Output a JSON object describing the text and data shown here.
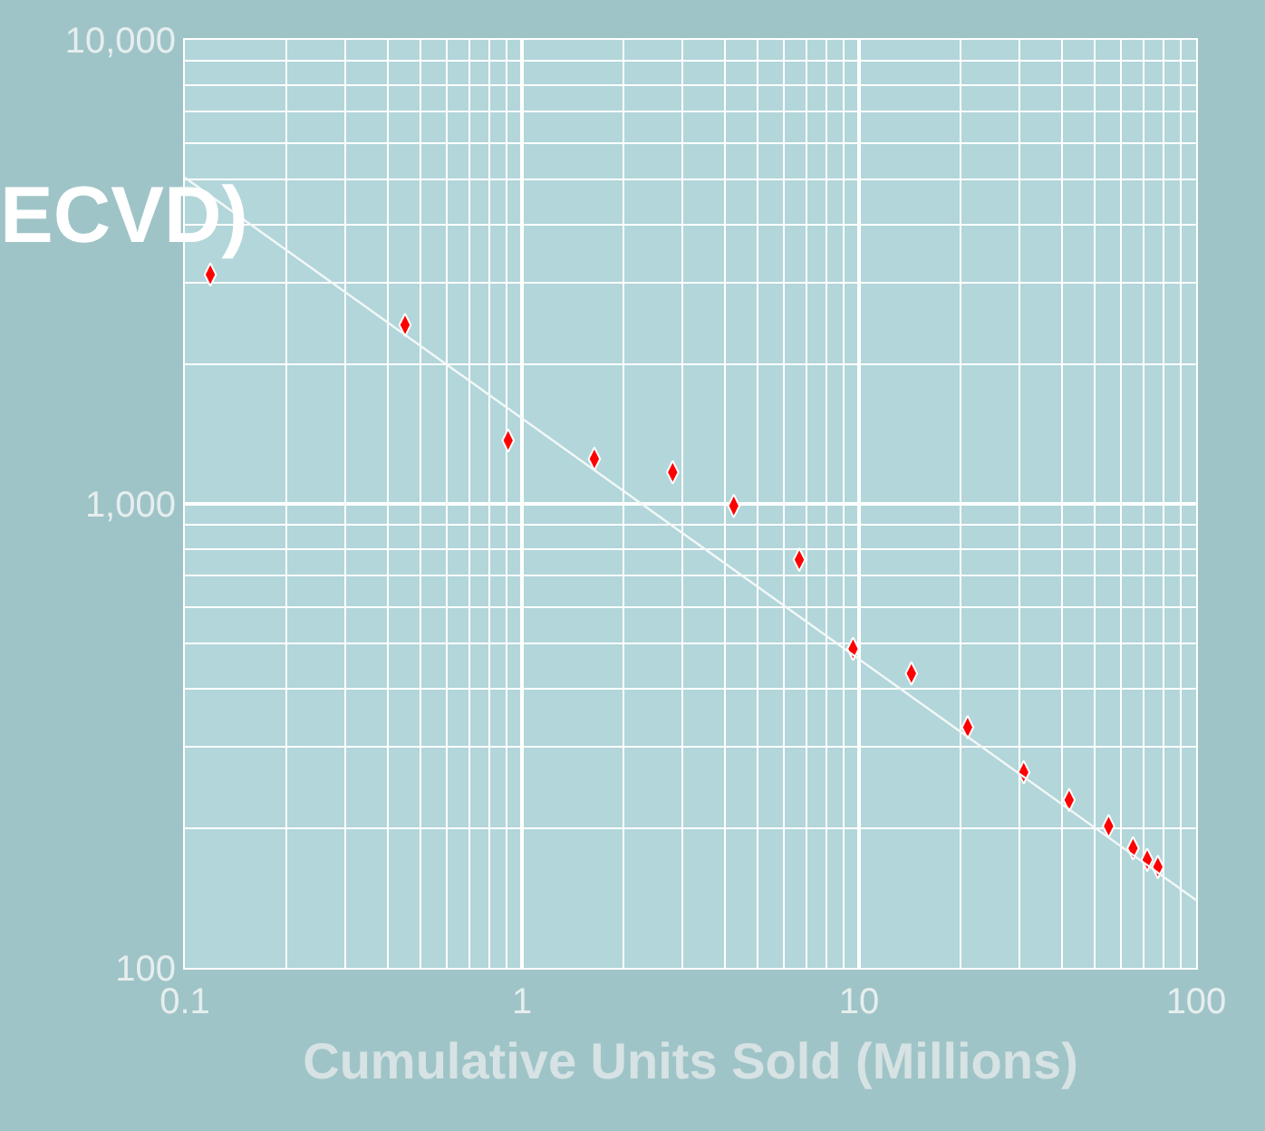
{
  "chart_data": {
    "type": "scatter",
    "title": "ECVD)",
    "xlabel": "Cumulative Units Sold (Millions)",
    "log": "xy",
    "xlim": [
      0.1,
      100
    ],
    "ylim": [
      100,
      10000
    ],
    "xticks": [
      0.1,
      1,
      10,
      100
    ],
    "yticks": [
      100,
      {
        "value": 1000,
        "label": "1,000"
      },
      {
        "value": 10000,
        "label": "10,000"
      }
    ],
    "grid": true,
    "legend": false,
    "marker": "diamond",
    "series": [
      {
        "color": "#ff0000",
        "x": [
          0.119,
          0.45,
          0.91,
          1.64,
          2.8,
          4.25,
          6.65,
          9.6,
          14.3,
          21,
          30.8,
          42,
          55,
          65,
          71.6,
          77
        ],
        "values": [
          3120,
          2430,
          1370,
          1250,
          1170,
          990,
          758,
          487,
          431,
          330,
          264,
          230,
          202,
          181,
          171,
          165
        ]
      },
      {
        "type": "line",
        "color": "#f4f8f8",
        "x": [
          0.1,
          100
        ],
        "values": [
          5050,
          140
        ],
        "marker": "none",
        "line_style": "solid"
      }
    ]
  }
}
